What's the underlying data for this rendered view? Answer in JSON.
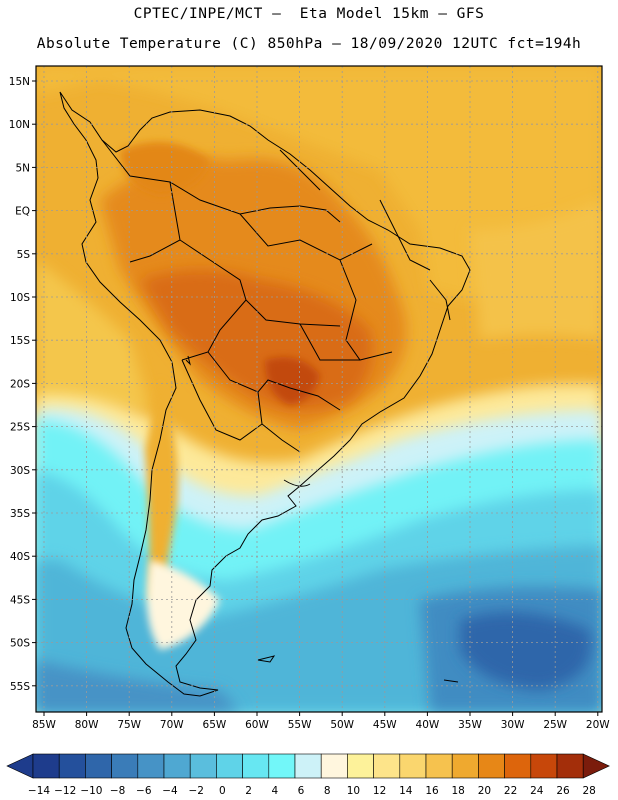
{
  "header": {
    "line1": "CPTEC/INPE/MCT –  Eta Model 15km – GFS",
    "line2": "Absolute Temperature (C) 850hPa – 18/09/2020 12UTC fct=194h"
  },
  "map": {
    "lat_labels": [
      "15N",
      "10N",
      "5N",
      "EQ",
      "5S",
      "10S",
      "15S",
      "20S",
      "25S",
      "30S",
      "35S",
      "40S",
      "45S",
      "50S",
      "55S"
    ],
    "lon_labels": [
      "85W",
      "80W",
      "75W",
      "70W",
      "65W",
      "60W",
      "55W",
      "50W",
      "45W",
      "40W",
      "35W",
      "30W",
      "25W",
      "20W"
    ],
    "gridlines": true
  },
  "colorbar": {
    "ticks": [
      "−14",
      "−12",
      "−10",
      "−8",
      "−6",
      "−4",
      "−2",
      "0",
      "2",
      "4",
      "6",
      "8",
      "10",
      "12",
      "14",
      "16",
      "18",
      "20",
      "22",
      "24",
      "26",
      "28"
    ],
    "colors": [
      "#1e3c8c",
      "#24509c",
      "#2f66aa",
      "#3a7cb8",
      "#4693c6",
      "#4fa8d2",
      "#5abedd",
      "#5fd3e8",
      "#67e7f2",
      "#72f7f9",
      "#cdf2f8",
      "#fff6de",
      "#fdf29a",
      "#fde48a",
      "#fad66e",
      "#f6c24e",
      "#efa92f",
      "#e78717",
      "#dd650c",
      "#c7470a",
      "#a32e0a",
      "#7b1c0c"
    ]
  }
}
